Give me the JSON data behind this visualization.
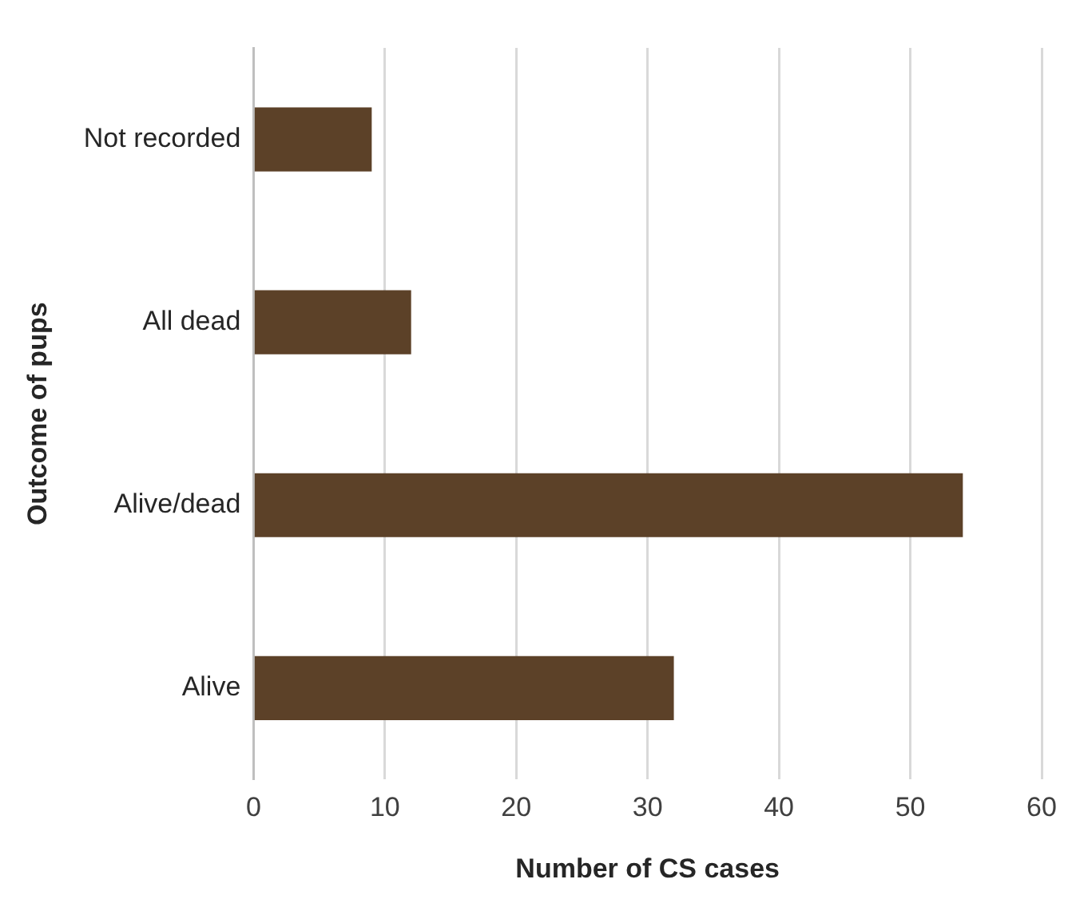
{
  "chart_data": {
    "type": "bar",
    "orientation": "horizontal",
    "categories": [
      "Not recorded",
      "All dead",
      "Alive/dead",
      "Alive"
    ],
    "values": [
      9,
      12,
      54,
      32
    ],
    "color": "#5c4128",
    "xlabel": "Number of CS cases",
    "ylabel": "Outcome of pups",
    "xlim": [
      0,
      60
    ],
    "xticks": [
      0,
      10,
      20,
      30,
      40,
      50,
      60
    ],
    "grid": "x",
    "legend": false
  }
}
